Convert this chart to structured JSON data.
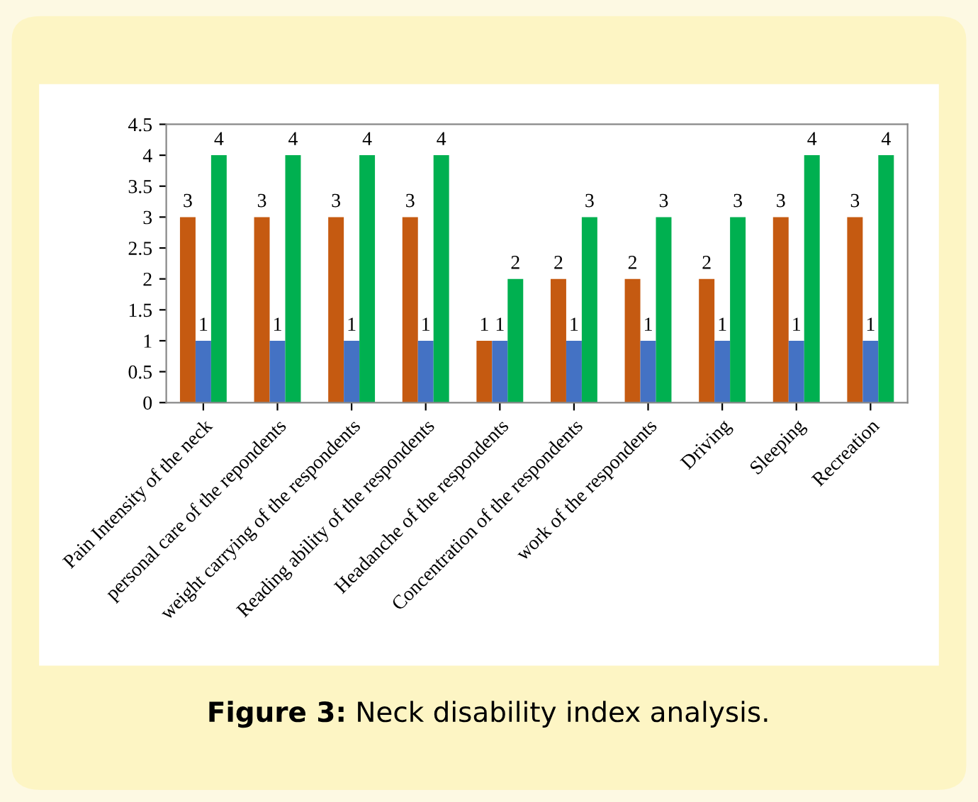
{
  "chart_data": {
    "type": "bar",
    "title": "Figure 3: Neck disability index analysis.",
    "categories": [
      "Pain Intensity of the neck",
      "personal care of the repondents",
      "weight carrying of the respondents",
      "Reading ability of the respondents",
      "Headanche of the respondents",
      "Concentration of the respondents",
      "work of the respondents",
      "Driving",
      "Sleeping",
      "Recreation"
    ],
    "series": [
      {
        "color": "#c55a11",
        "values": [
          3,
          3,
          3,
          3,
          1,
          2,
          2,
          2,
          3,
          3
        ]
      },
      {
        "color": "#4472c4",
        "values": [
          1,
          1,
          1,
          1,
          1,
          1,
          1,
          1,
          1,
          1
        ]
      },
      {
        "color": "#00b050",
        "values": [
          4,
          4,
          4,
          4,
          2,
          3,
          3,
          3,
          4,
          4
        ]
      }
    ],
    "ylim": [
      0,
      4.5
    ],
    "yticks": [
      0,
      0.5,
      1,
      1.5,
      2,
      2.5,
      3,
      3.5,
      4,
      4.5
    ],
    "data_labels": true,
    "grid": false,
    "legend": false
  }
}
